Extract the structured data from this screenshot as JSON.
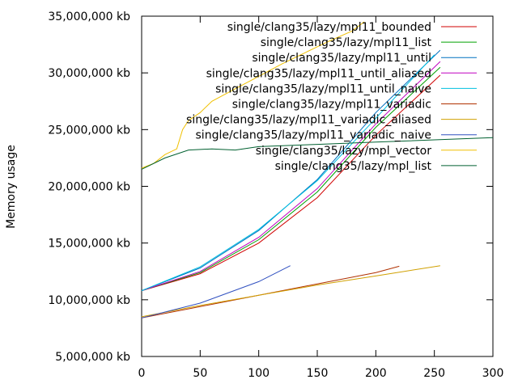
{
  "chart_data": {
    "type": "line",
    "title": "",
    "xlabel": "",
    "ylabel": "Memory usage",
    "xlim": [
      0,
      300
    ],
    "ylim": [
      5000000,
      35000000
    ],
    "grid": false,
    "legend_position": "top-right",
    "x_ticks": [
      {
        "value": 0,
        "label": "0"
      },
      {
        "value": 50,
        "label": "50"
      },
      {
        "value": 100,
        "label": "100"
      },
      {
        "value": 150,
        "label": "150"
      },
      {
        "value": 200,
        "label": "200"
      },
      {
        "value": 250,
        "label": "250"
      },
      {
        "value": 300,
        "label": "300"
      }
    ],
    "y_ticks": [
      {
        "value": 5000000,
        "label": "5,000,000 kb"
      },
      {
        "value": 10000000,
        "label": "10,000,000 kb"
      },
      {
        "value": 15000000,
        "label": "15,000,000 kb"
      },
      {
        "value": 20000000,
        "label": "20,000,000 kb"
      },
      {
        "value": 25000000,
        "label": "25,000,000 kb"
      },
      {
        "value": 30000000,
        "label": "30,000,000 kb"
      },
      {
        "value": 35000000,
        "label": "35,000,000 kb"
      }
    ],
    "series": [
      {
        "name": "single/clang35/lazy/mpl11_bounded",
        "color": "#d00000",
        "x": [
          0,
          50,
          100,
          150,
          200,
          255
        ],
        "y": [
          10800000,
          12300000,
          15000000,
          19000000,
          24500000,
          29800000
        ]
      },
      {
        "name": "single/clang35/lazy/mpl11_list",
        "color": "#00a000",
        "x": [
          0,
          50,
          100,
          150,
          200,
          255
        ],
        "y": [
          10800000,
          12400000,
          15300000,
          19500000,
          25200000,
          30500000
        ]
      },
      {
        "name": "single/clang35/lazy/mpl11_until",
        "color": "#0070c0",
        "x": [
          0,
          50,
          100,
          150,
          200,
          255
        ],
        "y": [
          10800000,
          12800000,
          16100000,
          20600000,
          26500000,
          32000000
        ]
      },
      {
        "name": "single/clang35/lazy/mpl11_until_aliased",
        "color": "#c000c0",
        "x": [
          0,
          50,
          100,
          150,
          200,
          255
        ],
        "y": [
          10800000,
          12500000,
          15500000,
          19800000,
          25500000,
          31000000
        ]
      },
      {
        "name": "single/clang35/lazy/mpl11_until_naive",
        "color": "#00c0e0",
        "x": [
          0,
          50,
          100,
          150,
          200,
          250
        ],
        "y": [
          10800000,
          12900000,
          16200000,
          20500000,
          26000000,
          31600000
        ]
      },
      {
        "name": "single/clang35/lazy/mpl11_variadic",
        "color": "#b03000",
        "x": [
          0,
          50,
          100,
          150,
          200,
          220
        ],
        "y": [
          8400000,
          9400000,
          10400000,
          11400000,
          12400000,
          12950000
        ]
      },
      {
        "name": "single/clang35/lazy/mpl11_variadic_aliased",
        "color": "#d0a000",
        "x": [
          0,
          50,
          100,
          150,
          200,
          255
        ],
        "y": [
          8500000,
          9500000,
          10400000,
          11300000,
          12100000,
          13000000
        ]
      },
      {
        "name": "single/clang35/lazy/mpl11_variadic_naive",
        "color": "#3050c0",
        "x": [
          0,
          50,
          100,
          127
        ],
        "y": [
          8400000,
          9700000,
          11600000,
          13000000
        ]
      },
      {
        "name": "single/clang35/lazy/mpl_vector",
        "color": "#f0c000",
        "x": [
          0,
          10,
          20,
          30,
          35,
          40,
          50,
          60,
          80,
          100,
          120,
          140,
          160,
          180,
          190
        ],
        "y": [
          21600000,
          22000000,
          22800000,
          23300000,
          25000000,
          25800000,
          26500000,
          27500000,
          28600000,
          29700000,
          30800000,
          31800000,
          32800000,
          33700000,
          34500000
        ]
      },
      {
        "name": "single/clang35/lazy/mpl_list",
        "color": "#006030",
        "x": [
          0,
          20,
          40,
          60,
          80,
          100,
          150,
          200,
          250,
          300
        ],
        "y": [
          21500000,
          22500000,
          23200000,
          23300000,
          23200000,
          23500000,
          23700000,
          23900000,
          24100000,
          24300000
        ]
      }
    ]
  }
}
